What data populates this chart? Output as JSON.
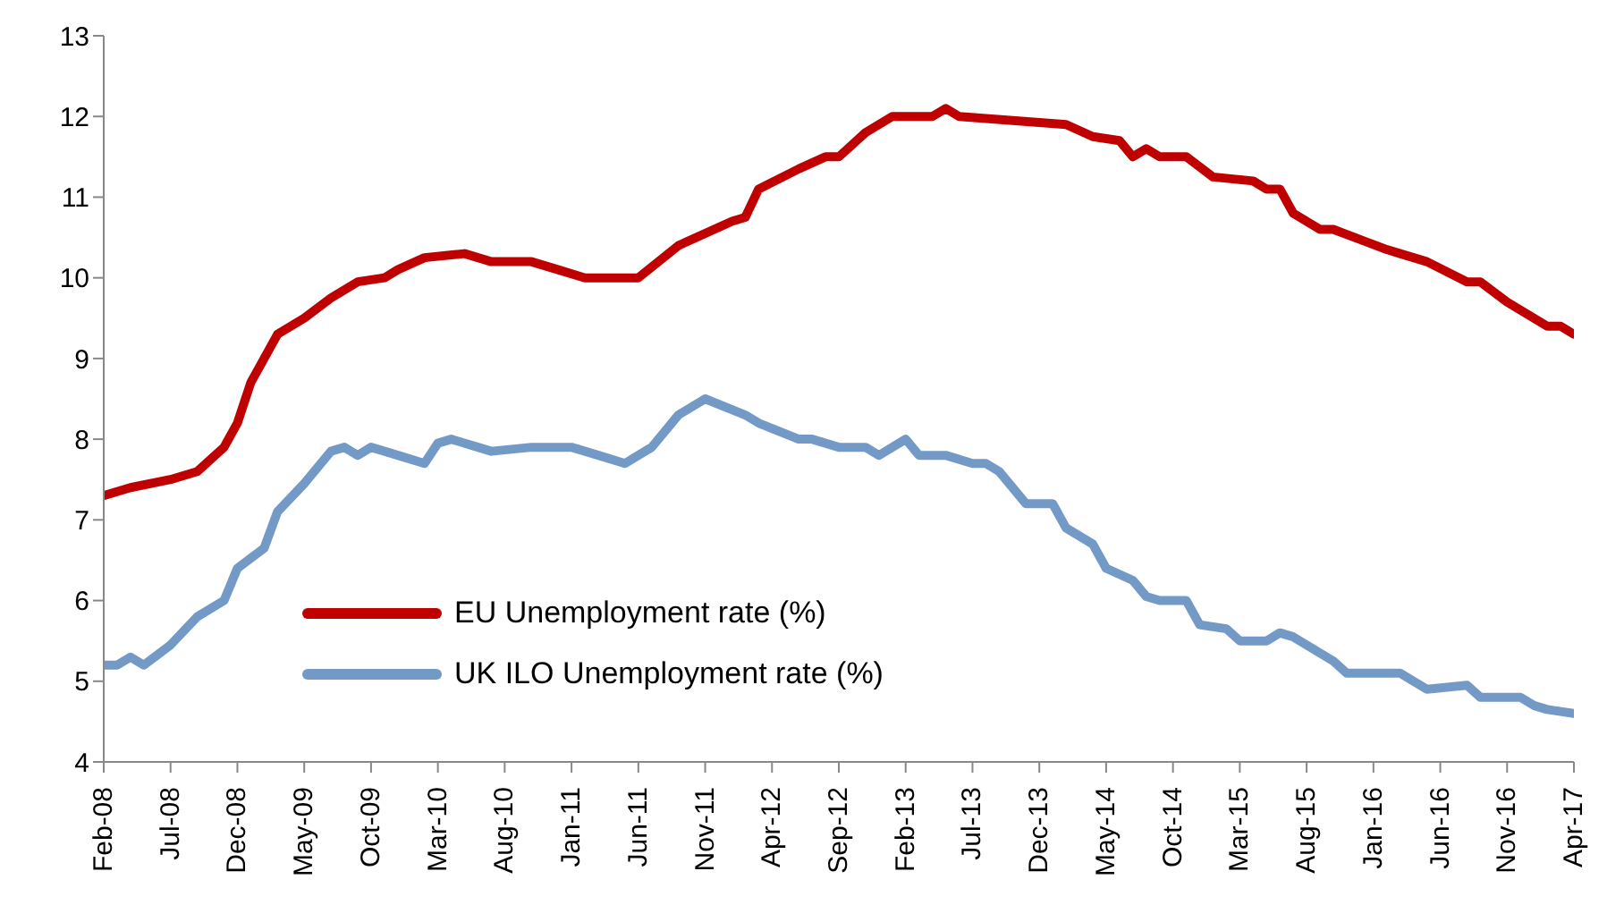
{
  "chart_data": {
    "type": "line",
    "legend": "bottom left",
    "ylim": [
      4,
      13
    ],
    "yticks": [
      4,
      5,
      6,
      7,
      8,
      9,
      10,
      11,
      12,
      13
    ],
    "xlim": [
      "2008-02",
      "2017-04"
    ],
    "xticks": [
      {
        "value": "2008-02",
        "label": "Feb-08"
      },
      {
        "value": "2008-07",
        "label": "Jul-08"
      },
      {
        "value": "2008-12",
        "label": "Dec-08"
      },
      {
        "value": "2009-05",
        "label": "May-09"
      },
      {
        "value": "2009-10",
        "label": "Oct-09"
      },
      {
        "value": "2010-03",
        "label": "Mar-10"
      },
      {
        "value": "2010-08",
        "label": "Aug-10"
      },
      {
        "value": "2011-01",
        "label": "Jan-11"
      },
      {
        "value": "2011-06",
        "label": "Jun-11"
      },
      {
        "value": "2011-11",
        "label": "Nov-11"
      },
      {
        "value": "2012-04",
        "label": "Apr-12"
      },
      {
        "value": "2012-09",
        "label": "Sep-12"
      },
      {
        "value": "2013-02",
        "label": "Feb-13"
      },
      {
        "value": "2013-07",
        "label": "Jul-13"
      },
      {
        "value": "2013-12",
        "label": "Dec-13"
      },
      {
        "value": "2014-05",
        "label": "May-14"
      },
      {
        "value": "2014-10",
        "label": "Oct-14"
      },
      {
        "value": "2015-03",
        "label": "Mar-15"
      },
      {
        "value": "2015-08",
        "label": "Aug-15"
      },
      {
        "value": "2016-01",
        "label": "Jan-16"
      },
      {
        "value": "2016-06",
        "label": "Jun-16"
      },
      {
        "value": "2016-11",
        "label": "Nov-16"
      },
      {
        "value": "2017-04",
        "label": "Apr-17"
      }
    ],
    "series": [
      {
        "name": "EU Unemployment rate (%)",
        "color": "#c00000",
        "x": [
          "2008-02",
          "2008-04",
          "2008-07",
          "2008-09",
          "2008-11",
          "2008-12",
          "2009-01",
          "2009-03",
          "2009-05",
          "2009-07",
          "2009-09",
          "2009-11",
          "2009-12",
          "2010-02",
          "2010-05",
          "2010-07",
          "2010-10",
          "2010-12",
          "2011-02",
          "2011-06",
          "2011-09",
          "2012-01",
          "2012-02",
          "2012-03",
          "2012-06",
          "2012-08",
          "2012-09",
          "2012-11",
          "2013-01",
          "2013-04",
          "2013-05",
          "2013-06",
          "2013-10",
          "2014-02",
          "2014-04",
          "2014-06",
          "2014-07",
          "2014-08",
          "2014-09",
          "2014-11",
          "2015-01",
          "2015-04",
          "2015-05",
          "2015-06",
          "2015-07",
          "2015-09",
          "2015-10",
          "2016-02",
          "2016-03",
          "2016-05",
          "2016-08",
          "2016-09",
          "2016-11",
          "2017-02",
          "2017-03",
          "2017-04"
        ],
        "values": [
          7.3,
          7.4,
          7.5,
          7.6,
          7.9,
          8.2,
          8.7,
          9.3,
          9.5,
          9.75,
          9.95,
          10.0,
          10.1,
          10.25,
          10.3,
          10.2,
          10.2,
          10.1,
          10.0,
          10.0,
          10.4,
          10.7,
          10.75,
          11.1,
          11.35,
          11.5,
          11.5,
          11.8,
          12.0,
          12.0,
          12.1,
          12.0,
          11.95,
          11.9,
          11.75,
          11.7,
          11.5,
          11.6,
          11.5,
          11.5,
          11.25,
          11.2,
          11.1,
          11.1,
          10.8,
          10.6,
          10.6,
          10.35,
          10.3,
          10.2,
          9.95,
          9.95,
          9.7,
          9.4,
          9.4,
          9.3
        ]
      },
      {
        "name": "UK ILO Unemployment rate (%)",
        "color": "#7399c6",
        "x": [
          "2008-02",
          "2008-03",
          "2008-04",
          "2008-05",
          "2008-07",
          "2008-09",
          "2008-11",
          "2008-12",
          "2009-02",
          "2009-03",
          "2009-05",
          "2009-07",
          "2009-08",
          "2009-09",
          "2009-10",
          "2009-12",
          "2010-02",
          "2010-03",
          "2010-04",
          "2010-06",
          "2010-07",
          "2010-10",
          "2011-01",
          "2011-03",
          "2011-05",
          "2011-07",
          "2011-09",
          "2011-11",
          "2012-02",
          "2012-03",
          "2012-06",
          "2012-07",
          "2012-09",
          "2012-11",
          "2012-12",
          "2013-02",
          "2013-03",
          "2013-05",
          "2013-07",
          "2013-08",
          "2013-09",
          "2013-11",
          "2014-01",
          "2014-02",
          "2014-04",
          "2014-05",
          "2014-07",
          "2014-08",
          "2014-09",
          "2014-11",
          "2014-12",
          "2015-02",
          "2015-03",
          "2015-05",
          "2015-06",
          "2015-07",
          "2015-09",
          "2015-10",
          "2015-11",
          "2016-03",
          "2016-05",
          "2016-08",
          "2016-09",
          "2016-12",
          "2017-01",
          "2017-02",
          "2017-04"
        ],
        "values": [
          5.2,
          5.2,
          5.3,
          5.2,
          5.45,
          5.8,
          6.0,
          6.4,
          6.65,
          7.1,
          7.45,
          7.85,
          7.9,
          7.8,
          7.9,
          7.8,
          7.7,
          7.95,
          8.0,
          7.9,
          7.85,
          7.9,
          7.9,
          7.8,
          7.7,
          7.9,
          8.3,
          8.5,
          8.3,
          8.2,
          8.0,
          8.0,
          7.9,
          7.9,
          7.8,
          8.0,
          7.8,
          7.8,
          7.7,
          7.7,
          7.6,
          7.2,
          7.2,
          6.9,
          6.7,
          6.4,
          6.25,
          6.05,
          6.0,
          6.0,
          5.7,
          5.65,
          5.5,
          5.5,
          5.6,
          5.55,
          5.35,
          5.25,
          5.1,
          5.1,
          4.9,
          4.95,
          4.8,
          4.8,
          4.7,
          4.65,
          4.6
        ]
      }
    ]
  }
}
